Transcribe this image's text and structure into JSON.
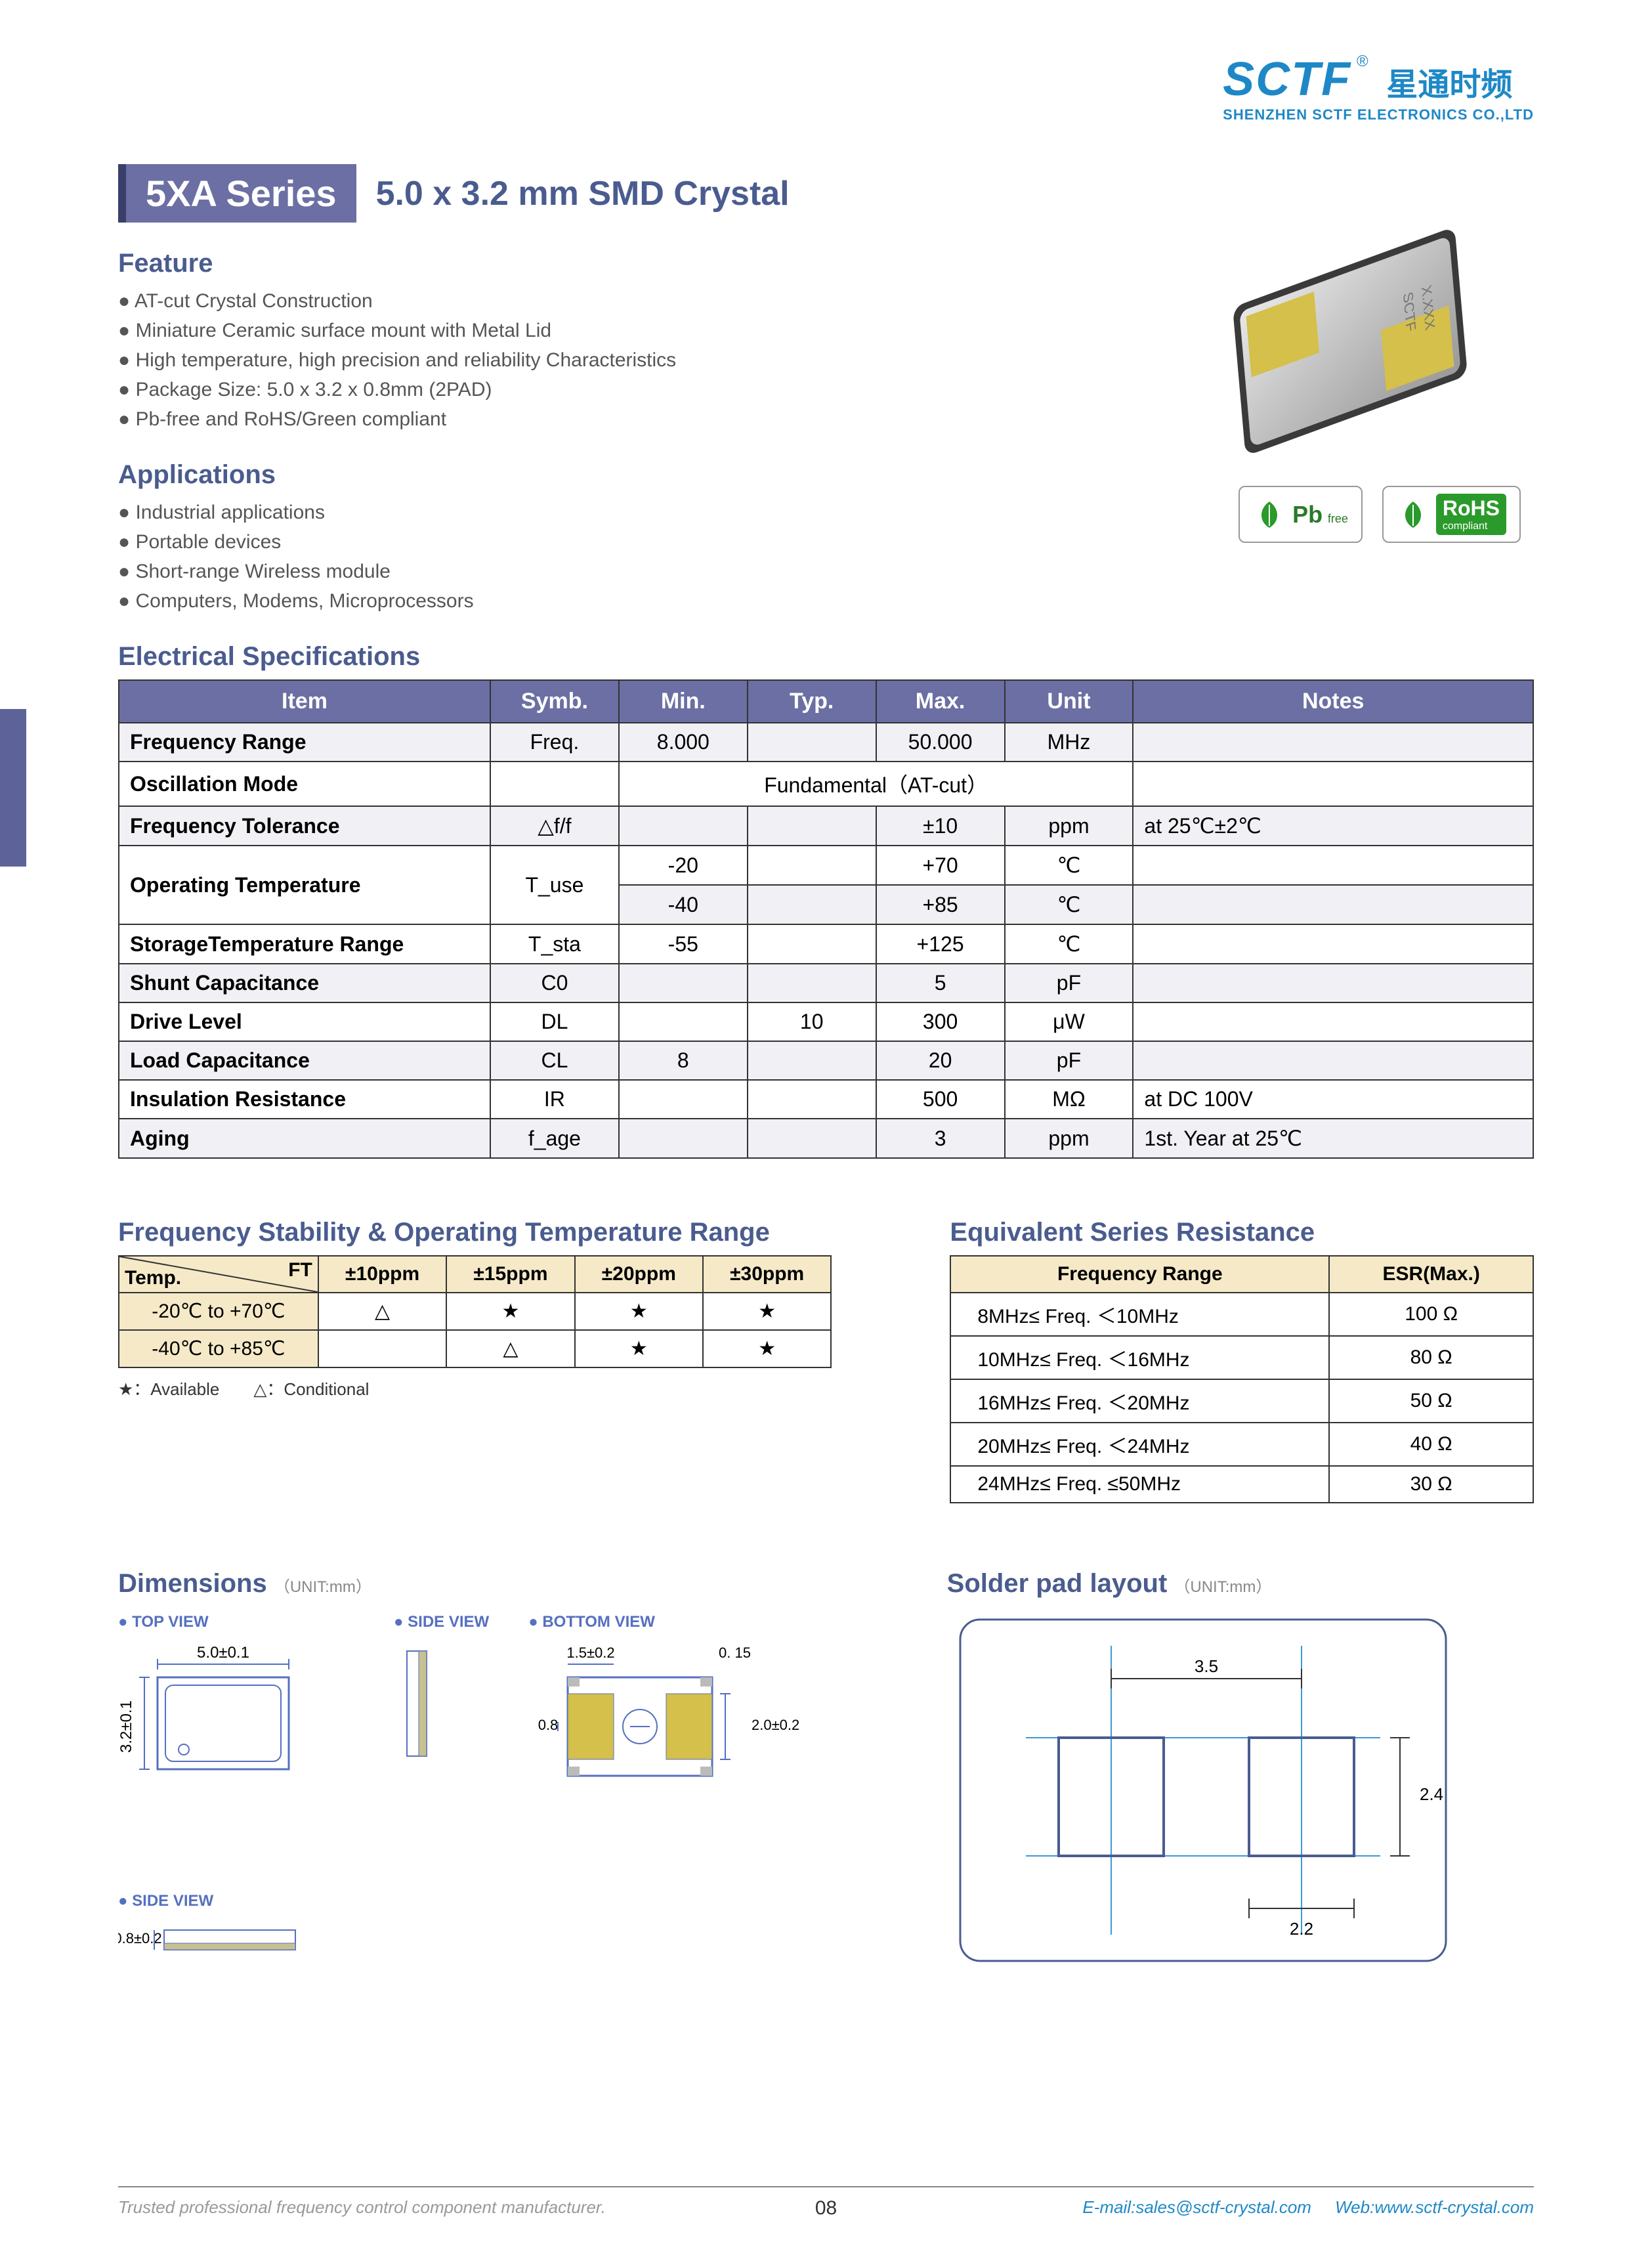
{
  "logo": {
    "brand": "SCTF",
    "reg": "®",
    "cn": "星通时频",
    "sub": "SHENZHEN SCTF ELECTRONICS CO.,LTD"
  },
  "series_badge": "5XA Series",
  "product_title": "5.0 x 3.2 mm SMD Crystal",
  "feature_h": "Feature",
  "features": [
    "AT-cut Crystal Construction",
    "Miniature Ceramic surface mount with Metal Lid",
    "High temperature, high precision and reliability Characteristics",
    "Package Size: 5.0 x 3.2 x 0.8mm (2PAD)",
    "Pb-free and RoHS/Green compliant"
  ],
  "apps_h": "Applications",
  "apps": [
    "Industrial applications",
    "Portable devices",
    "Short-range Wireless module",
    "Computers, Modems, Microprocessors"
  ],
  "badges": {
    "pb": "Pb",
    "pb_sub": "free",
    "rohs": "RoHS",
    "rohs_sub": "compliant"
  },
  "spec_h": "Electrical Specifications",
  "spec_cols": [
    "Item",
    "Symb.",
    "Min.",
    "Typ.",
    "Max.",
    "Unit",
    "Notes"
  ],
  "spec_rows": [
    {
      "item": "Frequency Range",
      "symb": "Freq.",
      "min": "8.000",
      "typ": "",
      "max": "50.000",
      "unit": "MHz",
      "notes": ""
    },
    {
      "item": "Oscillation Mode",
      "span": "Fundamental（AT-cut）"
    },
    {
      "item": "Frequency Tolerance",
      "symb": "△f/f",
      "min": "",
      "typ": "",
      "max": "±10",
      "unit": "ppm",
      "notes": "at 25℃±2℃"
    },
    {
      "item": "Operating Temperature",
      "symb": "T_use",
      "rows2": [
        {
          "min": "-20",
          "typ": "",
          "max": "+70",
          "unit": "℃",
          "notes": ""
        },
        {
          "min": "-40",
          "typ": "",
          "max": "+85",
          "unit": "℃",
          "notes": ""
        }
      ]
    },
    {
      "item": "StorageTemperature Range",
      "symb": "T_sta",
      "min": "-55",
      "typ": "",
      "max": "+125",
      "unit": "℃",
      "notes": ""
    },
    {
      "item": "Shunt Capacitance",
      "symb": "C0",
      "min": "",
      "typ": "",
      "max": "5",
      "unit": "pF",
      "notes": ""
    },
    {
      "item": "Drive Level",
      "symb": "DL",
      "min": "",
      "typ": "10",
      "max": "300",
      "unit": "μW",
      "notes": ""
    },
    {
      "item": "Load Capacitance",
      "symb": "CL",
      "min": "8",
      "typ": "",
      "max": "20",
      "unit": "pF",
      "notes": ""
    },
    {
      "item": "Insulation Resistance",
      "symb": "IR",
      "min": "",
      "typ": "",
      "max": "500",
      "unit": "MΩ",
      "notes": "at DC 100V"
    },
    {
      "item": "Aging",
      "symb": "f_age",
      "min": "",
      "typ": "",
      "max": "3",
      "unit": "ppm",
      "notes": "1st. Year at 25℃"
    }
  ],
  "freq_stab_h": "Frequency Stability & Operating Temperature Range",
  "freq_stab_cols": [
    "±10ppm",
    "±15ppm",
    "±20ppm",
    "±30ppm"
  ],
  "freq_stab_diag_ft": "FT",
  "freq_stab_diag_temp": "Temp.",
  "freq_stab_rows": [
    {
      "temp": "-20℃ to +70℃",
      "vals": [
        "△",
        "★",
        "★",
        "★"
      ]
    },
    {
      "temp": "-40℃ to +85℃",
      "vals": [
        "",
        "△",
        "★",
        "★"
      ]
    }
  ],
  "legend": "★：Available　　△：Conditional",
  "esr_h": "Equivalent Series Resistance",
  "esr_cols": [
    "Frequency Range",
    "ESR(Max.)"
  ],
  "esr_rows": [
    {
      "range": "8MHz≤ Freq. ＜10MHz",
      "esr": "100 Ω"
    },
    {
      "range": "10MHz≤ Freq. ＜16MHz",
      "esr": "80 Ω"
    },
    {
      "range": "16MHz≤ Freq. ＜20MHz",
      "esr": "50 Ω"
    },
    {
      "range": "20MHz≤ Freq. ＜24MHz",
      "esr": "40 Ω"
    },
    {
      "range": "24MHz≤ Freq. ≤50MHz",
      "esr": "30 Ω"
    }
  ],
  "dim_h": "Dimensions",
  "unit_txt": "（UNIT:mm）",
  "pad_h": "Solder pad layout",
  "views": {
    "top": "● TOP VIEW",
    "side": "● SIDE VIEW",
    "bottom": "● BOTTOM VIEW"
  },
  "dims": {
    "w": "5.0±0.1",
    "h": "3.2±0.1",
    "t": "0.8±0.2",
    "pad_w": "1.5±0.2",
    "pad_corner": "0. 15",
    "pad_h": "2.0±0.2",
    "pad_gap": "0.8",
    "solder_gap": "3.5",
    "solder_h": "2.4",
    "solder_w": "2.2"
  },
  "footer": {
    "left": "Trusted professional frequency control component manufacturer.",
    "page": "08",
    "email_l": "E-mail:",
    "email": "sales@sctf-crystal.com",
    "web_l": "Web:",
    "web": "www.sctf-crystal.com"
  },
  "colors": {
    "brand": "#1e88c7",
    "accent": "#6b6fa3",
    "accent_dark": "#4a5c8f",
    "pad_yellow": "#d4c04a",
    "green": "#2a9a2a",
    "solder_line": "#4a5c8f",
    "solder_cross": "#3b9bd4"
  }
}
